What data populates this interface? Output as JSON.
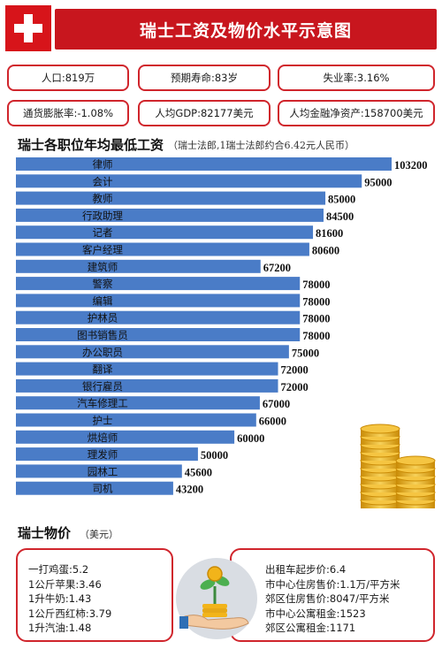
{
  "header": {
    "title": "瑞士工资及物价水平示意图"
  },
  "stats": [
    "人口:819万",
    "预期寿命:83岁",
    "失业率:3.16%",
    "通货膨胀率:-1.08%",
    "人均GDP:82177美元",
    "人均金融净资产:158700美元"
  ],
  "wage_section": {
    "title": "瑞士各职位年均最低工资",
    "note": "（瑞士法郎,1瑞士法郎约合6.42元人民币）"
  },
  "chart_data": {
    "type": "bar",
    "orientation": "horizontal",
    "categories": [
      "律师",
      "会计",
      "教师",
      "行政助理",
      "记者",
      "客户经理",
      "建筑师",
      "警察",
      "编辑",
      "护林员",
      "图书销售员",
      "办公职员",
      "翻译",
      "银行雇员",
      "汽车修理工",
      "护士",
      "烘焙师",
      "理发师",
      "园林工",
      "司机"
    ],
    "values": [
      103200,
      95000,
      85000,
      84500,
      81600,
      80600,
      67200,
      78000,
      78000,
      78000,
      78000,
      75000,
      72000,
      72000,
      67000,
      66000,
      60000,
      50000,
      45600,
      43200
    ],
    "bar_color": "#4a7cc7",
    "grid": false
  },
  "price_section": {
    "title": "瑞士物价",
    "note": "（美元）"
  },
  "prices_left": [
    "一打鸡蛋:5.2",
    "1公斤苹果:3.46",
    "1升牛奶:1.43",
    "1公斤西红柿:3.79",
    "1升汽油:1.48"
  ],
  "prices_right": [
    "出租车起步价:6.4",
    "市中心住房售价:1.1万/平方米",
    "郊区住房售价:8047/平方米",
    "市中心公寓租金:1523",
    "郊区公寓租金:1171"
  ],
  "colors": {
    "accent_red": "#c8161e",
    "border_red": "#d0252c",
    "bar_blue": "#4a7cc7",
    "coin_gold": "#e6a817"
  },
  "icons": [
    "swiss-flag-icon",
    "gold-coins-icon",
    "money-hand-icon"
  ]
}
